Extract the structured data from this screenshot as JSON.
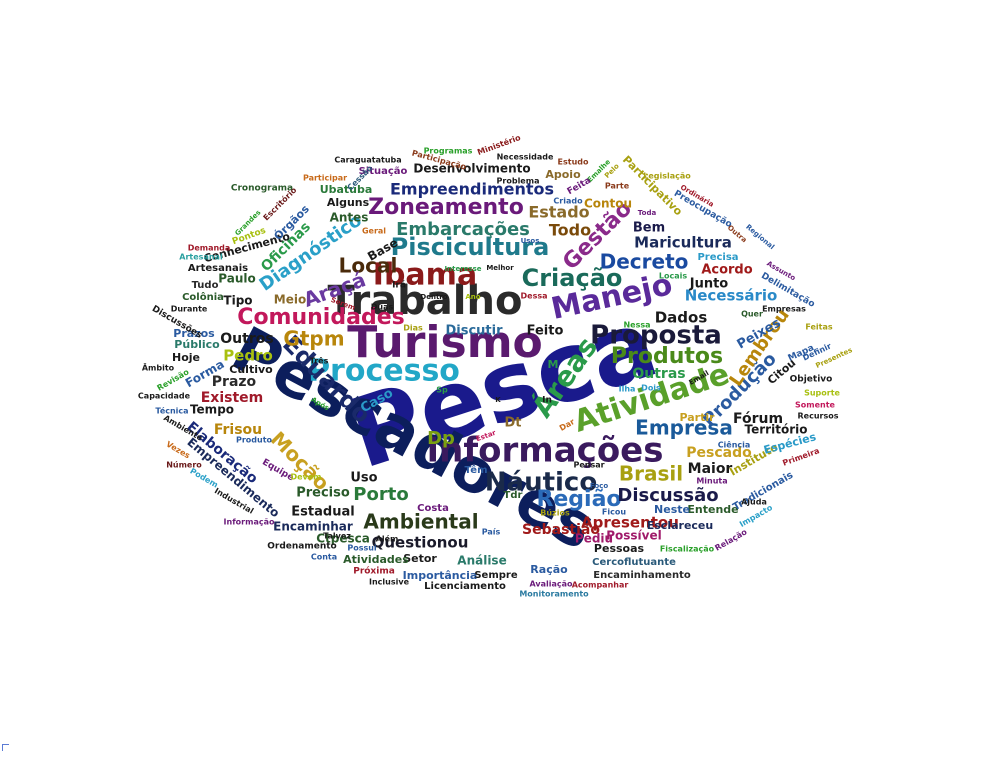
{
  "cloud": {
    "words": [
      {
        "text": "Pesca",
        "color": "#1a1a8c"
      },
      {
        "text": "Pescadores",
        "color": "#0c1e5c"
      },
      {
        "text": "Turismo",
        "color": "#5a1a6e"
      },
      {
        "text": "Trabalho",
        "color": "#2a2a2a"
      },
      {
        "text": "Informações",
        "color": "#3a1a5e"
      },
      {
        "text": "Ibama",
        "color": "#8a1a1a"
      },
      {
        "text": "Manejo",
        "color": "#5a2a9a"
      },
      {
        "text": "Processo",
        "color": "#22a7c7"
      },
      {
        "text": "Atividade",
        "color": "#5aa02a"
      },
      {
        "text": "Proposta",
        "color": "#1a1a3a"
      },
      {
        "text": "Áreas",
        "color": "#2a9a4a"
      },
      {
        "text": "Náutico",
        "color": "#1a2a4a"
      },
      {
        "text": "Comunidades",
        "color": "#c2185b"
      },
      {
        "text": "Piscicultura",
        "color": "#1f7a8c"
      },
      {
        "text": "Criação",
        "color": "#1a6a5a"
      },
      {
        "text": "Eduardo",
        "color": "#1a2a6a"
      },
      {
        "text": "Região",
        "color": "#2a6ab8"
      },
      {
        "text": "Zoneamento",
        "color": "#6a1a7a"
      },
      {
        "text": "Gestão",
        "color": "#8a2a8a"
      },
      {
        "text": "Produtos",
        "color": "#4a8a1a"
      },
      {
        "text": "Empresa",
        "color": "#1a5a9a"
      },
      {
        "text": "Ambiental",
        "color": "#2a3a1a"
      },
      {
        "text": "Diagnóstico",
        "color": "#2aa0c8"
      },
      {
        "text": "Embarcações",
        "color": "#2a7a6a"
      },
      {
        "text": "Gtpm",
        "color": "#b8860b"
      },
      {
        "text": "Local",
        "color": "#4a2a0a"
      },
      {
        "text": "Decreto",
        "color": "#1a4aa0"
      },
      {
        "text": "Araçá",
        "color": "#6a3aa0"
      },
      {
        "text": "Brasil",
        "color": "#a8a010"
      },
      {
        "text": "Moção",
        "color": "#c8a020"
      },
      {
        "text": "Porto",
        "color": "#2a7a3a"
      },
      {
        "text": "Discussão",
        "color": "#1a1a4a"
      },
      {
        "text": "Produção",
        "color": "#2a5aa0"
      },
      {
        "text": "Lembrou",
        "color": "#b8860b"
      },
      {
        "text": "Dp",
        "color": "#7aa010"
      },
      {
        "text": "Empreendimentos",
        "color": "#1a2a7a"
      },
      {
        "text": "Estado",
        "color": "#8a6a2a"
      },
      {
        "text": "Todo",
        "color": "#7a4a0a"
      },
      {
        "text": "Maricultura",
        "color": "#1a2a5a"
      },
      {
        "text": "Necessário",
        "color": "#2a8ac8"
      },
      {
        "text": "Dados",
        "color": "#1a1a1a"
      },
      {
        "text": "Apresentou",
        "color": "#a01a1a"
      },
      {
        "text": "Questionou",
        "color": "#1a1a2a"
      },
      {
        "text": "Pedro",
        "color": "#a8c010"
      },
      {
        "text": "Outros",
        "color": "#1a1a1a"
      },
      {
        "text": "Existem",
        "color": "#a01a2a"
      },
      {
        "text": "Prazo",
        "color": "#2a2a2a"
      },
      {
        "text": "Frisou",
        "color": "#b8860b"
      },
      {
        "text": "Pescado",
        "color": "#c8a020"
      },
      {
        "text": "Maior",
        "color": "#1a1a1a"
      },
      {
        "text": "Sebastião",
        "color": "#a01a1a"
      },
      {
        "text": "Outras",
        "color": "#2a9a4a"
      },
      {
        "text": "Fórum",
        "color": "#1a1a1a"
      },
      {
        "text": "Território",
        "color": "#1a1a1a"
      },
      {
        "text": "Peixes",
        "color": "#2a5aa0"
      },
      {
        "text": "Acordo",
        "color": "#a01a1a"
      },
      {
        "text": "Junto",
        "color": "#1a1a1a"
      },
      {
        "text": "Bem",
        "color": "#1a1a4a"
      },
      {
        "text": "Feito",
        "color": "#1a1a1a"
      },
      {
        "text": "Discutir",
        "color": "#2a6a9a"
      },
      {
        "text": "Caso",
        "color": "#2a9ac8"
      },
      {
        "text": "Dt",
        "color": "#8a6a2a"
      },
      {
        "text": "Uso",
        "color": "#1a1a1a"
      },
      {
        "text": "Preciso",
        "color": "#2a5a2a"
      },
      {
        "text": "Estadual",
        "color": "#1a1a1a"
      },
      {
        "text": "Encaminhar",
        "color": "#1a2a5a"
      },
      {
        "text": "Ctpesca",
        "color": "#2a5a2a"
      },
      {
        "text": "Análise",
        "color": "#2a7a6a"
      },
      {
        "text": "Setor",
        "color": "#1a1a1a"
      },
      {
        "text": "Atividades",
        "color": "#2a5a2a"
      },
      {
        "text": "Importância",
        "color": "#2a5aa0"
      },
      {
        "text": "Sempre",
        "color": "#1a1a1a"
      },
      {
        "text": "Ração",
        "color": "#2a5aa0"
      },
      {
        "text": "Licenciamento",
        "color": "#1a1a1a"
      },
      {
        "text": "Encaminhamento",
        "color": "#2a2a2a"
      },
      {
        "text": "Cercoflutuante",
        "color": "#2a5a7a"
      },
      {
        "text": "Pessoas",
        "color": "#1a1a1a"
      },
      {
        "text": "Possível",
        "color": "#a01a6a"
      },
      {
        "text": "Pediu",
        "color": "#a01a6a"
      },
      {
        "text": "Esclareceu",
        "color": "#1a2a5a"
      },
      {
        "text": "Entende",
        "color": "#2a5a2a"
      },
      {
        "text": "Neste",
        "color": "#2a5aa0"
      },
      {
        "text": "Instituto",
        "color": "#a8a010"
      },
      {
        "text": "Tradicionais",
        "color": "#2a5aa0"
      },
      {
        "text": "Espécies",
        "color": "#2a9ac8"
      },
      {
        "text": "Citou",
        "color": "#1a1a1a"
      },
      {
        "text": "Partir",
        "color": "#c8a020"
      },
      {
        "text": "Elaboração",
        "color": "#1a2a7a"
      },
      {
        "text": "Empreendimento",
        "color": "#1a2a5a"
      },
      {
        "text": "Tempo",
        "color": "#1a1a1a"
      },
      {
        "text": "Forma",
        "color": "#2a5aa0"
      },
      {
        "text": "Cultivo",
        "color": "#1a1a1a"
      },
      {
        "text": "Hoje",
        "color": "#1a1a1a"
      },
      {
        "text": "Público",
        "color": "#2a7a6a"
      },
      {
        "text": "Prazos",
        "color": "#2a5aa0"
      },
      {
        "text": "Tipo",
        "color": "#1a1a1a"
      },
      {
        "text": "Meio",
        "color": "#8a6a2a"
      },
      {
        "text": "Paulo",
        "color": "#2a5a2a"
      },
      {
        "text": "Colônia",
        "color": "#2a5a2a"
      },
      {
        "text": "Tudo",
        "color": "#2a2a2a"
      },
      {
        "text": "Artesanais",
        "color": "#1a1a1a"
      },
      {
        "text": "Oficinas",
        "color": "#2a9a4a"
      },
      {
        "text": "Conhecimento",
        "color": "#1a1a1a"
      },
      {
        "text": "Órgãos",
        "color": "#2a5aa0"
      },
      {
        "text": "Alguns",
        "color": "#1a1a1a"
      },
      {
        "text": "Antes",
        "color": "#2a5a2a"
      },
      {
        "text": "Ubatuba",
        "color": "#2a7a3a"
      },
      {
        "text": "Situação",
        "color": "#6a1a7a"
      },
      {
        "text": "Desenvolvimento",
        "color": "#1a1a1a"
      },
      {
        "text": "Apoio",
        "color": "#8a6a2a"
      },
      {
        "text": "Contou",
        "color": "#b8860b"
      },
      {
        "text": "Participativo",
        "color": "#a8a010"
      },
      {
        "text": "Preocupação",
        "color": "#2a5aa0"
      },
      {
        "text": "Delimitação",
        "color": "#2a5aa0"
      },
      {
        "text": "Precisa",
        "color": "#2a9ac8"
      },
      {
        "text": "Mapa",
        "color": "#2a5aa0"
      },
      {
        "text": "Objetivo",
        "color": "#1a1a1a"
      },
      {
        "text": "Base",
        "color": "#1a1a1a"
      },
      {
        "text": "Irá",
        "color": "#1a1a1a"
      },
      {
        "text": "Cronograma",
        "color": "#2a5a2a"
      },
      {
        "text": "Caraguatatuba",
        "color": "#1a1a1a"
      },
      {
        "text": "Necessidade",
        "color": "#1a1a1a"
      },
      {
        "text": "Estudo",
        "color": "#8a3a1a"
      },
      {
        "text": "Programas",
        "color": "#2aa02a"
      },
      {
        "text": "Participação",
        "color": "#8a3a1a"
      },
      {
        "text": "Ministério",
        "color": "#8a1a1a"
      },
      {
        "text": "Participar",
        "color": "#c86a1a"
      },
      {
        "text": "Escritório",
        "color": "#6a1a1a"
      },
      {
        "text": "Grandes",
        "color": "#2aa02a"
      },
      {
        "text": "Pontos",
        "color": "#a8c010"
      },
      {
        "text": "Demanda",
        "color": "#a01a2a"
      },
      {
        "text": "Artesanal",
        "color": "#2aa0a0"
      },
      {
        "text": "Durante",
        "color": "#1a1a1a"
      },
      {
        "text": "Discussões",
        "color": "#1a1a1a"
      },
      {
        "text": "Âmbito",
        "color": "#1a1a1a"
      },
      {
        "text": "Revisão",
        "color": "#2aa02a"
      },
      {
        "text": "Capacidade",
        "color": "#1a1a1a"
      },
      {
        "text": "Técnica",
        "color": "#2a5aa0"
      },
      {
        "text": "Ambiente",
        "color": "#1a1a1a"
      },
      {
        "text": "Vezes",
        "color": "#c86a1a"
      },
      {
        "text": "Número",
        "color": "#6a1a1a"
      },
      {
        "text": "Podem",
        "color": "#2aa0c8"
      },
      {
        "text": "Industrial",
        "color": "#1a1a1a"
      },
      {
        "text": "Informação",
        "color": "#6a1a7a"
      },
      {
        "text": "Ordenamento",
        "color": "#1a1a1a"
      },
      {
        "text": "Conta",
        "color": "#2a5aa0"
      },
      {
        "text": "Próxima",
        "color": "#a01a2a"
      },
      {
        "text": "Inclusive",
        "color": "#1a1a1a"
      },
      {
        "text": "Avaliação",
        "color": "#6a1a7a"
      },
      {
        "text": "Monitoramento",
        "color": "#2a7aa0"
      },
      {
        "text": "Acompanhar",
        "color": "#a01a2a"
      },
      {
        "text": "Fiscalização",
        "color": "#2aa02a"
      },
      {
        "text": "Relação",
        "color": "#6a1a7a"
      },
      {
        "text": "Impacto",
        "color": "#2aa0c8"
      },
      {
        "text": "Ajuda",
        "color": "#1a1a1a"
      },
      {
        "text": "Minuta",
        "color": "#6a1a7a"
      },
      {
        "text": "Ciência",
        "color": "#2a5aa0"
      },
      {
        "text": "Primeira",
        "color": "#a01a2a"
      },
      {
        "text": "Recursos",
        "color": "#1a1a1a"
      },
      {
        "text": "Suporte",
        "color": "#a8c010"
      },
      {
        "text": "Somente",
        "color": "#c2185b"
      },
      {
        "text": "Presentes",
        "color": "#a8a010"
      },
      {
        "text": "Definir",
        "color": "#2a5aa0"
      },
      {
        "text": "Feitas",
        "color": "#a8a010"
      },
      {
        "text": "Quer",
        "color": "#2a5a2a"
      },
      {
        "text": "Empresas",
        "color": "#1a1a1a"
      },
      {
        "text": "Assunto",
        "color": "#6a1a7a"
      },
      {
        "text": "Regional",
        "color": "#2a5aa0"
      },
      {
        "text": "Outra",
        "color": "#8a3a1a"
      },
      {
        "text": "Ordinária",
        "color": "#a01a2a"
      },
      {
        "text": "Legislação",
        "color": "#a8a010"
      },
      {
        "text": "Toda",
        "color": "#6a1a7a"
      },
      {
        "text": "Parte",
        "color": "#8a3a1a"
      },
      {
        "text": "Pelo",
        "color": "#a8a010"
      },
      {
        "text": "Emalhe",
        "color": "#2aa02a"
      },
      {
        "text": "Feita",
        "color": "#6a1a7a"
      },
      {
        "text": "Criado",
        "color": "#2a5aa0"
      },
      {
        "text": "Problema",
        "color": "#1a1a1a"
      },
      {
        "text": "Cessão",
        "color": "#2a5a7a"
      },
      {
        "text": "Geral",
        "color": "#c86a1a"
      },
      {
        "text": "Usos",
        "color": "#2a5aa0"
      },
      {
        "text": "Interesse",
        "color": "#2a9a4a"
      },
      {
        "text": "Melhor",
        "color": "#1a1a1a"
      },
      {
        "text": "Locais",
        "color": "#2a9a4a"
      },
      {
        "text": "Dessa",
        "color": "#a01a2a"
      },
      {
        "text": "Ano",
        "color": "#a8c010"
      },
      {
        "text": "Dentro",
        "color": "#1a1a1a"
      },
      {
        "text": "Duas",
        "color": "#1a1a1a"
      },
      {
        "text": "Serem",
        "color": "#a01a2a"
      },
      {
        "text": "Dias",
        "color": "#a8a010"
      },
      {
        "text": "Nessa",
        "color": "#2aa02a"
      },
      {
        "text": "Ilha",
        "color": "#2a9ac8"
      },
      {
        "text": "Dois",
        "color": "#2a9ac8"
      },
      {
        "text": "Email",
        "color": "#1a1a1a"
      },
      {
        "text": "Três",
        "color": "#1a1a1a"
      },
      {
        "text": "Após",
        "color": "#2aa02a"
      },
      {
        "text": "Sp",
        "color": "#2a9a4a"
      },
      {
        "text": "In",
        "color": "#1a1a1a"
      },
      {
        "text": "K",
        "color": "#1a1a1a"
      },
      {
        "text": "Dar",
        "color": "#c86a1a"
      },
      {
        "text": "Estar",
        "color": "#c2185b"
      },
      {
        "text": "Produto",
        "color": "#2a5aa0"
      },
      {
        "text": "Equipe",
        "color": "#6a1a7a"
      },
      {
        "text": "Devem",
        "color": "#a8c010"
      },
      {
        "text": "Têm",
        "color": "#2a5aa0"
      },
      {
        "text": "Pensar",
        "color": "#1a1a1a"
      },
      {
        "text": "Tdr",
        "color": "#2a5a2a"
      },
      {
        "text": "Foco",
        "color": "#2a5aa0"
      },
      {
        "text": "Búzios",
        "color": "#a8a010"
      },
      {
        "text": "Ficou",
        "color": "#2a5aa0"
      },
      {
        "text": "País",
        "color": "#2a5aa0"
      },
      {
        "text": "Costa",
        "color": "#6a1a7a"
      },
      {
        "text": "Possui",
        "color": "#2a5aa0"
      },
      {
        "text": "Talvez",
        "color": "#1a1a1a"
      },
      {
        "text": "Além",
        "color": "#1a1a1a"
      },
      {
        "text": "M",
        "color": "#2a9a4a"
      }
    ]
  }
}
